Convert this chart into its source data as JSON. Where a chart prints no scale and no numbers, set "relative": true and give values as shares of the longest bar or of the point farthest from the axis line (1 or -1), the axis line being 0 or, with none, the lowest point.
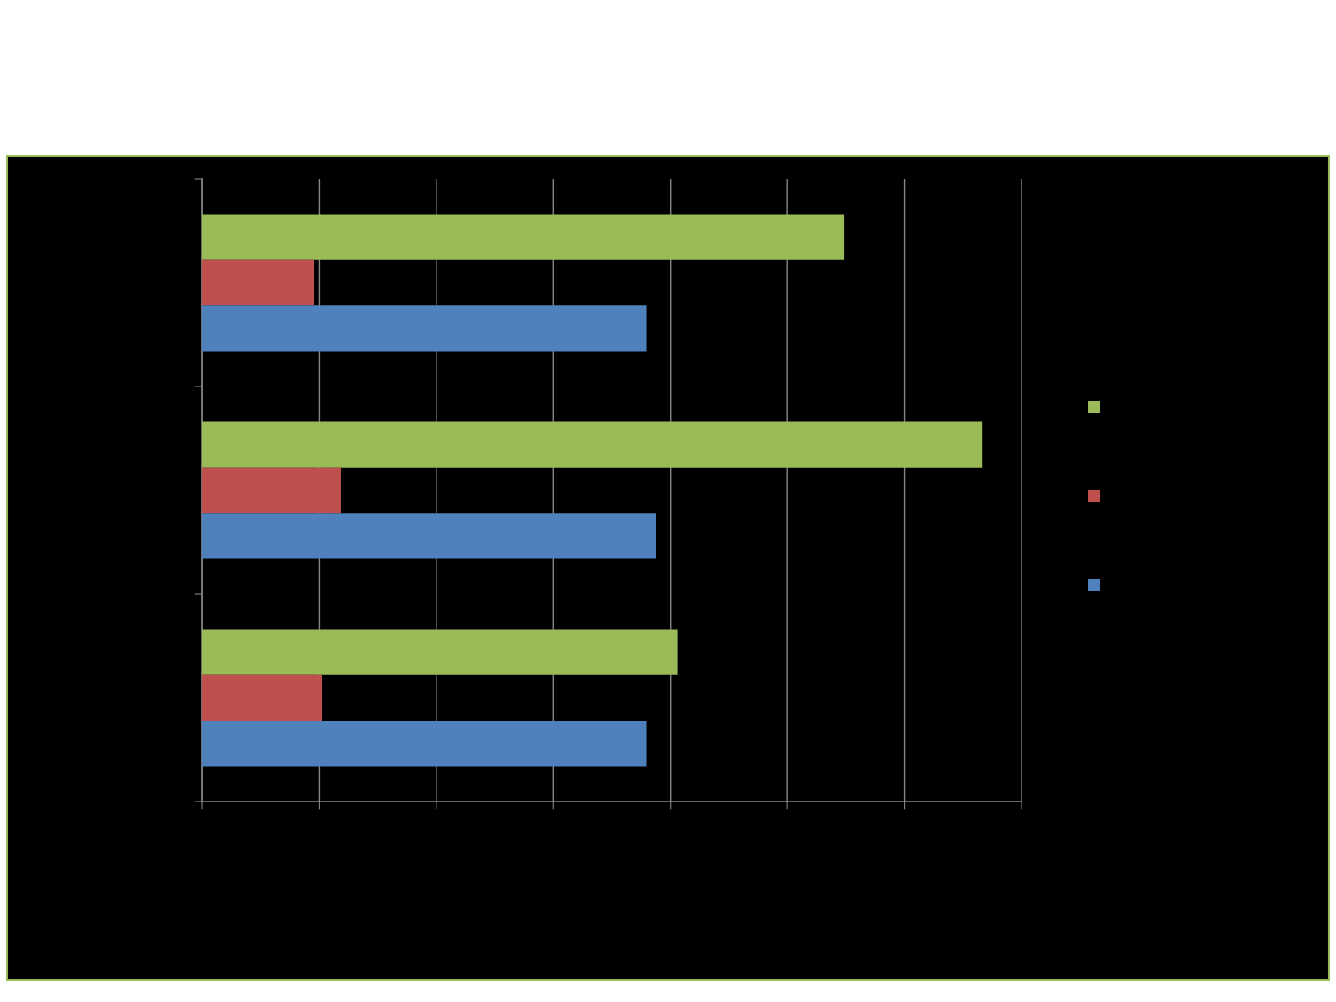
{
  "chart_data": {
    "type": "bar",
    "orientation": "horizontal",
    "relative": true,
    "categories": [
      null,
      null,
      null
    ],
    "series": [
      {
        "color": "#9bbb59",
        "values": [
          0.823,
          1,
          0.609
        ]
      },
      {
        "color": "#c0504d",
        "values": [
          0.143,
          0.178,
          0.153
        ]
      },
      {
        "color": "#4f81bd",
        "values": [
          0.569,
          0.582,
          0.569
        ]
      }
    ],
    "grid": "x"
  }
}
